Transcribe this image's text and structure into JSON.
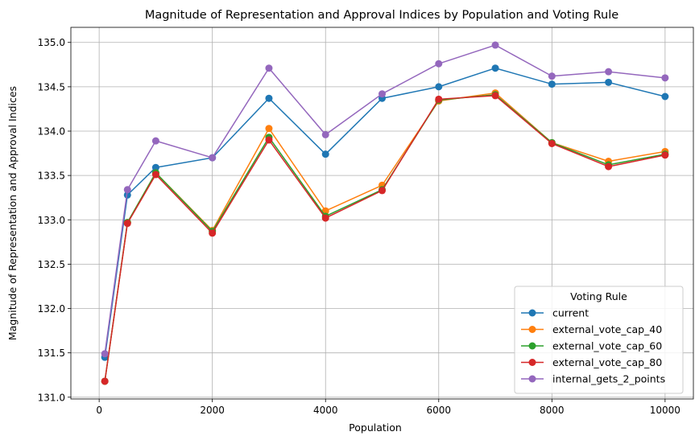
{
  "chart_data": {
    "type": "line",
    "title": "Magnitude of Representation and Approval Indices by Population and Voting Rule",
    "xlabel": "Population",
    "ylabel": "Magnitude of Representation and Approval Indices",
    "xlim": [
      -500,
      10500
    ],
    "ylim": [
      130.98,
      135.17
    ],
    "x_ticks": [
      0,
      2000,
      4000,
      6000,
      8000,
      10000
    ],
    "y_ticks": [
      131.0,
      131.5,
      132.0,
      132.5,
      133.0,
      133.5,
      134.0,
      134.5,
      135.0
    ],
    "grid": true,
    "legend_title": "Voting Rule",
    "legend_position": "lower-right",
    "x": [
      100,
      500,
      1000,
      2000,
      3000,
      4000,
      5000,
      6000,
      7000,
      8000,
      9000,
      10000
    ],
    "series": [
      {
        "name": "current",
        "color": "#1f77b4",
        "values": [
          131.45,
          133.28,
          133.59,
          133.7,
          134.37,
          133.74,
          134.37,
          134.5,
          134.71,
          134.53,
          134.55,
          134.39
        ]
      },
      {
        "name": "external_vote_cap_40",
        "color": "#ff7f0e",
        "values": [
          131.18,
          132.97,
          133.53,
          132.88,
          134.03,
          133.1,
          133.39,
          134.34,
          134.43,
          133.87,
          133.66,
          133.77
        ]
      },
      {
        "name": "external_vote_cap_60",
        "color": "#2ca02c",
        "values": [
          131.18,
          132.97,
          133.53,
          132.87,
          133.93,
          133.04,
          133.34,
          134.35,
          134.41,
          133.87,
          133.62,
          133.74
        ]
      },
      {
        "name": "external_vote_cap_80",
        "color": "#d62728",
        "values": [
          131.18,
          132.96,
          133.51,
          132.85,
          133.9,
          133.02,
          133.33,
          134.36,
          134.4,
          133.86,
          133.6,
          133.73
        ]
      },
      {
        "name": "internal_gets_2_points",
        "color": "#9467bd",
        "values": [
          131.49,
          133.34,
          133.89,
          133.7,
          134.71,
          133.96,
          134.42,
          134.76,
          134.97,
          134.62,
          134.67,
          134.6
        ]
      }
    ]
  }
}
